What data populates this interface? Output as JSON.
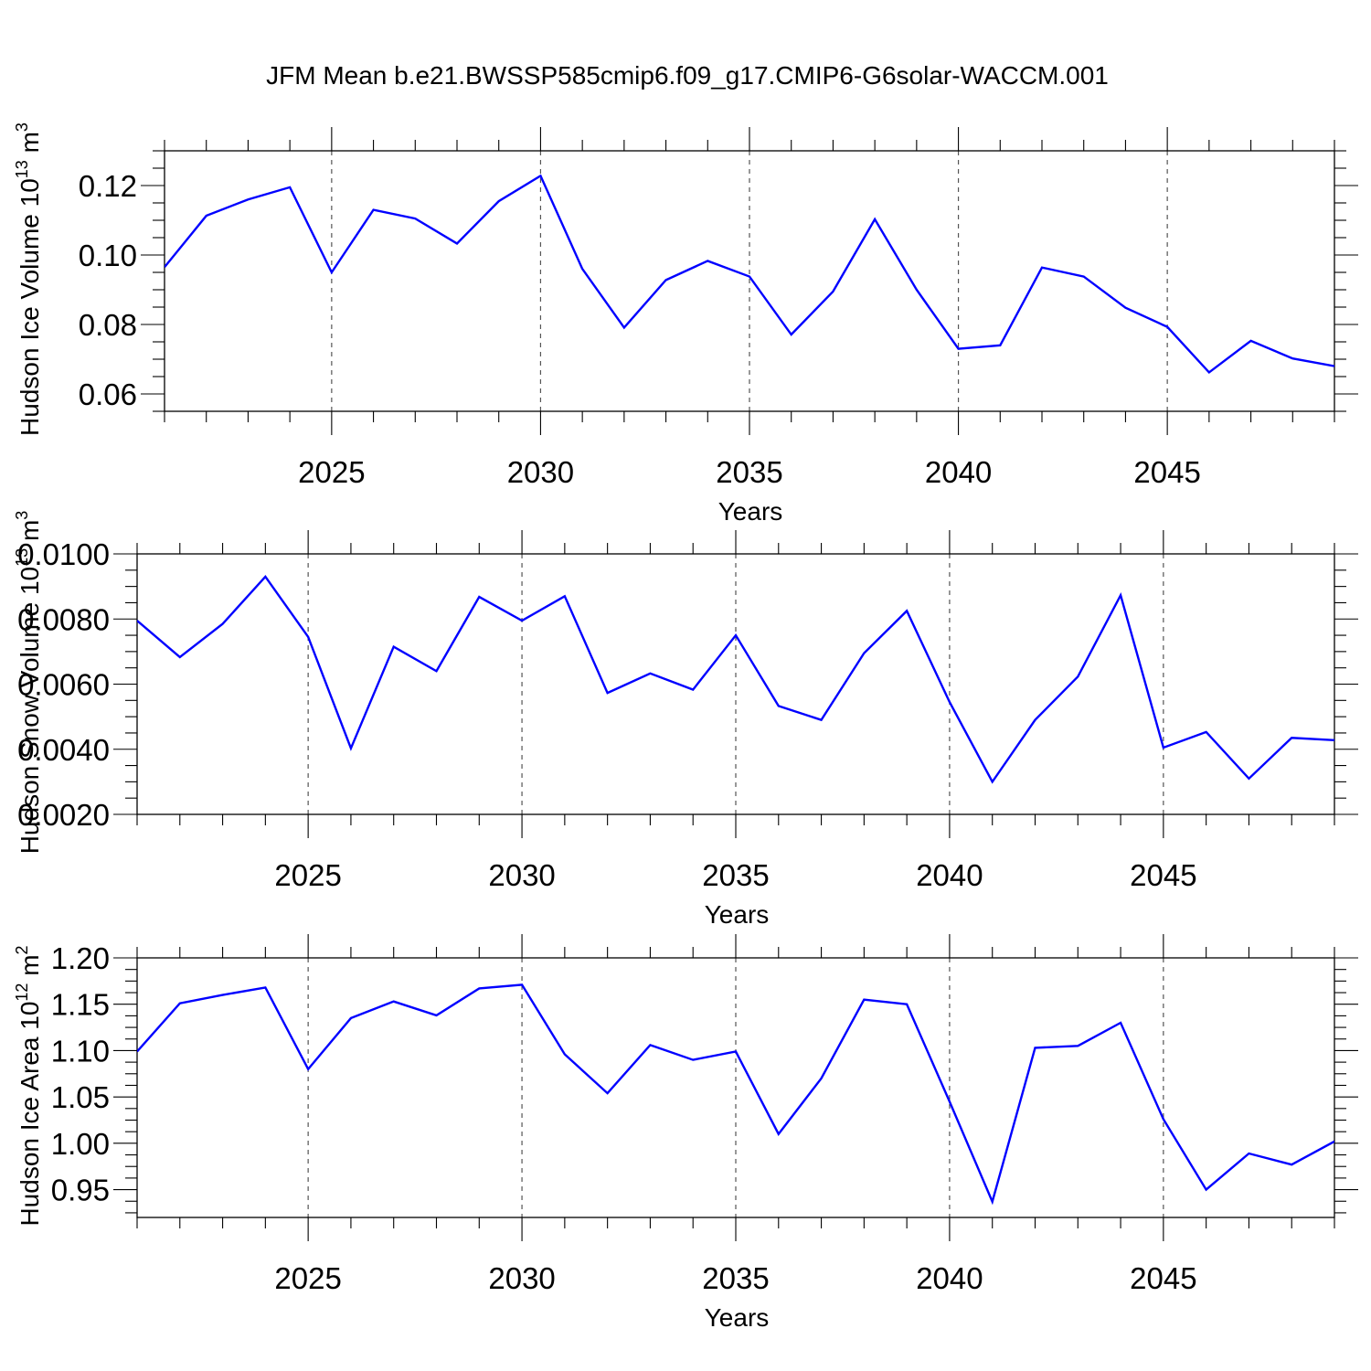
{
  "title": "JFM Mean b.e21.BWSSP585cmip6.f09_g17.CMIP6-G6solar-WACCM.001",
  "colors": {
    "series": "#0000ff",
    "axis": "#000000",
    "grid": "#555555",
    "background": "#ffffff"
  },
  "chart_data": [
    {
      "type": "line",
      "ylabel": "Hudson Ice Volume 10",
      "ylabel_exponent": "13",
      "ylabel_unit": "m",
      "ylabel_unit_exponent": "3",
      "xlabel": "Years",
      "xlim": [
        2021,
        2049
      ],
      "ylim": [
        0.055,
        0.13
      ],
      "x_ticks": [
        2025,
        2030,
        2035,
        2040,
        2045
      ],
      "x_tick_labels": [
        "2025",
        "2030",
        "2035",
        "2040",
        "2045"
      ],
      "y_ticks": [
        0.06,
        0.08,
        0.1,
        0.12
      ],
      "y_tick_labels": [
        "0.06",
        "0.08",
        "0.10",
        "0.12"
      ],
      "grid": "vertical dashed at labeled years",
      "x": [
        2021,
        2022,
        2023,
        2024,
        2025,
        2026,
        2027,
        2028,
        2029,
        2030,
        2031,
        2032,
        2033,
        2034,
        2035,
        2036,
        2037,
        2038,
        2039,
        2040,
        2041,
        2042,
        2043,
        2044,
        2045,
        2046,
        2047,
        2048,
        2049
      ],
      "values": [
        0.0965,
        0.1113,
        0.116,
        0.1195,
        0.095,
        0.113,
        0.1105,
        0.1033,
        0.1155,
        0.1228,
        0.096,
        0.0791,
        0.0928,
        0.0983,
        0.0938,
        0.0771,
        0.0895,
        0.1103,
        0.09,
        0.073,
        0.074,
        0.0964,
        0.0938,
        0.0848,
        0.0793,
        0.0662,
        0.0753,
        0.0702,
        0.068
      ]
    },
    {
      "type": "line",
      "ylabel": "Hudson Snow Volume 10",
      "ylabel_exponent": "13",
      "ylabel_unit": "m",
      "ylabel_unit_exponent": "3",
      "xlabel": "Years",
      "xlim": [
        2021,
        2049
      ],
      "ylim": [
        0.002,
        0.01
      ],
      "x_ticks": [
        2025,
        2030,
        2035,
        2040,
        2045
      ],
      "x_tick_labels": [
        "2025",
        "2030",
        "2035",
        "2040",
        "2045"
      ],
      "y_ticks": [
        0.002,
        0.004,
        0.006,
        0.008,
        0.01
      ],
      "y_tick_labels": [
        "0.0020",
        "0.0040",
        "0.0060",
        "0.0080",
        "0.0100"
      ],
      "grid": "vertical dashed at labeled years",
      "x": [
        2021,
        2022,
        2023,
        2024,
        2025,
        2026,
        2027,
        2028,
        2029,
        2030,
        2031,
        2032,
        2033,
        2034,
        2035,
        2036,
        2037,
        2038,
        2039,
        2040,
        2041,
        2042,
        2043,
        2044,
        2045,
        2046,
        2047,
        2048,
        2049
      ],
      "values": [
        0.00795,
        0.00683,
        0.00785,
        0.0093,
        0.00745,
        0.00403,
        0.00715,
        0.0064,
        0.00868,
        0.00795,
        0.0087,
        0.00573,
        0.00633,
        0.00583,
        0.0075,
        0.00533,
        0.0049,
        0.00695,
        0.00825,
        0.00545,
        0.003,
        0.0049,
        0.00623,
        0.00873,
        0.00405,
        0.00453,
        0.0031,
        0.00435,
        0.00428
      ]
    },
    {
      "type": "line",
      "ylabel": "Hudson Ice Area 10",
      "ylabel_exponent": "12",
      "ylabel_unit": "m",
      "ylabel_unit_exponent": "2",
      "xlabel": "Years",
      "xlim": [
        2021,
        2049
      ],
      "ylim": [
        0.92,
        1.2
      ],
      "x_ticks": [
        2025,
        2030,
        2035,
        2040,
        2045
      ],
      "x_tick_labels": [
        "2025",
        "2030",
        "2035",
        "2040",
        "2045"
      ],
      "y_ticks": [
        0.95,
        1.0,
        1.05,
        1.1,
        1.15,
        1.2
      ],
      "y_tick_labels": [
        "0.95",
        "1.00",
        "1.05",
        "1.10",
        "1.15",
        "1.20"
      ],
      "grid": "vertical dashed at labeled years",
      "x": [
        2021,
        2022,
        2023,
        2024,
        2025,
        2026,
        2027,
        2028,
        2029,
        2030,
        2031,
        2032,
        2033,
        2034,
        2035,
        2036,
        2037,
        2038,
        2039,
        2040,
        2041,
        2042,
        2043,
        2044,
        2045,
        2046,
        2047,
        2048,
        2049
      ],
      "values": [
        1.099,
        1.151,
        1.16,
        1.168,
        1.08,
        1.135,
        1.153,
        1.138,
        1.167,
        1.171,
        1.096,
        1.054,
        1.106,
        1.09,
        1.099,
        1.01,
        1.07,
        1.155,
        1.15,
        1.045,
        0.937,
        1.103,
        1.105,
        1.13,
        1.026,
        0.95,
        0.989,
        0.977,
        1.002
      ]
    }
  ]
}
